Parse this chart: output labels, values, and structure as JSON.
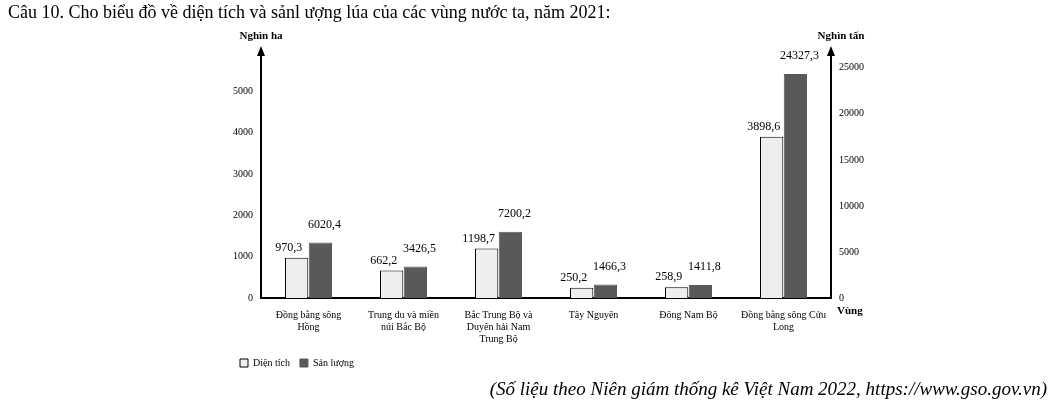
{
  "chart_data": {
    "type": "bar",
    "title": "Câu 10. Cho biểu đồ về diện tích và sảnl ượng lúa của các vùng nước ta, năm 2021:",
    "xlabel": "Vùng",
    "ylabel": "Nghìn ha",
    "y2label": "Nghìn tấn",
    "categories": [
      "Đồng bằng sông Hồng",
      "Trung du và miền núi Bắc Bộ",
      "Bắc Trung Bộ và Duyên hải Nam Trung Bộ",
      "Tây Nguyên",
      "Đông Nam Bộ",
      "Đồng bằng sông Cửu Long"
    ],
    "series": [
      {
        "name": "Diện tích",
        "color": "#eeeeee",
        "values": [
          970.3,
          662.2,
          1198.7,
          250.2,
          258.9,
          3898.6
        ],
        "value_labels": [
          "970,3",
          "662,2",
          "1198,7",
          "250,2",
          "258,9",
          "3898,6"
        ]
      },
      {
        "name": "Sản lượng",
        "color": "#595959",
        "axis": "y2",
        "values": [
          6020.4,
          3426.5,
          7200.2,
          1466.3,
          1411.8,
          24327.3
        ],
        "value_labels": [
          "6020,4",
          "3426,5",
          "7200,2",
          "1466,3",
          "1411,8",
          "24327,3"
        ]
      }
    ],
    "ylim": [
      0,
      5900
    ],
    "yticks": [
      0,
      1000,
      2000,
      3000,
      4000,
      5000
    ],
    "y2lim": [
      0,
      26500
    ],
    "y2ticks": [
      0,
      5000,
      10000,
      15000,
      20000,
      25000
    ],
    "grid": false,
    "legend": "bottom",
    "annotations": [
      "(Số liệu theo Niên giám thống kê Việt Nam 2022, https://www.gso.gov.vn)"
    ]
  }
}
